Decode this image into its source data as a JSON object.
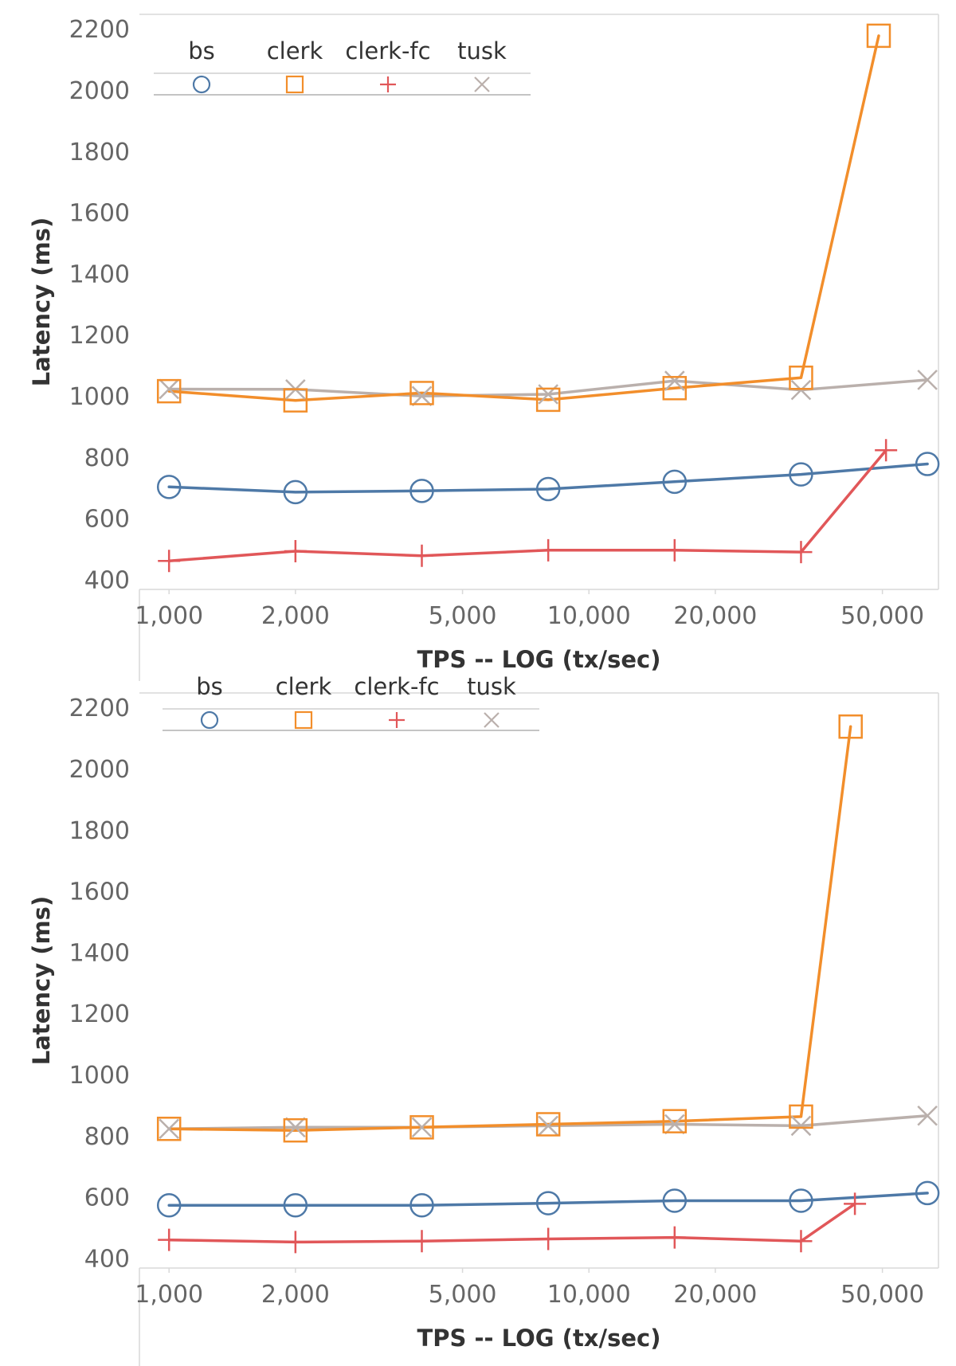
{
  "chart_data": [
    {
      "type": "line",
      "title": "",
      "xlabel": "TPS -- LOG (tx/sec)",
      "ylabel": "Latency (ms)",
      "x_scale": "log",
      "xlim": [
        850,
        68000
      ],
      "ylim": [
        370,
        2250
      ],
      "x_ticks": [
        1000,
        2000,
        5000,
        10000,
        20000,
        50000
      ],
      "x_tick_labels": [
        "1,000",
        "2,000",
        "5,000",
        "10,000",
        "20,000",
        "50,000"
      ],
      "y_ticks": [
        400,
        600,
        800,
        1000,
        1200,
        1400,
        1600,
        1800,
        2000,
        2200
      ],
      "y_tick_labels": [
        "400",
        "600",
        "800",
        "1000",
        "1200",
        "1400",
        "1600",
        "1800",
        "2000",
        "2200"
      ],
      "legend": {
        "placement": "top-left",
        "entries": [
          "bs",
          "clerk",
          "clerk-fc",
          "tusk"
        ]
      },
      "series": [
        {
          "name": "bs",
          "marker": "circle",
          "color": "#4e79a7",
          "x": [
            1000,
            2000,
            4000,
            8000,
            16000,
            32000,
            64000
          ],
          "y": [
            705,
            688,
            692,
            698,
            722,
            746,
            780
          ]
        },
        {
          "name": "clerk",
          "marker": "square",
          "color": "#f28e2b",
          "x": [
            1000,
            2000,
            4000,
            8000,
            16000,
            32000,
            49000
          ],
          "y": [
            1018,
            988,
            1012,
            990,
            1028,
            1062,
            2180
          ]
        },
        {
          "name": "clerk-fc",
          "marker": "plus",
          "color": "#e15759",
          "x": [
            1000,
            2000,
            4000,
            8000,
            16000,
            32000,
            51000
          ],
          "y": [
            463,
            495,
            480,
            498,
            498,
            492,
            825
          ]
        },
        {
          "name": "tusk",
          "marker": "x",
          "color": "#bab0ac",
          "x": [
            1000,
            2000,
            4000,
            8000,
            16000,
            32000,
            64000
          ],
          "y": [
            1025,
            1024,
            1002,
            1008,
            1052,
            1022,
            1055
          ]
        }
      ]
    },
    {
      "type": "line",
      "title": "",
      "xlabel": "TPS -- LOG (tx/sec)",
      "ylabel": "Latency (ms)",
      "x_scale": "log",
      "xlim": [
        850,
        68000
      ],
      "ylim": [
        370,
        2250
      ],
      "x_ticks": [
        1000,
        2000,
        5000,
        10000,
        20000,
        50000
      ],
      "x_tick_labels": [
        "1,000",
        "2,000",
        "5,000",
        "10,000",
        "20,000",
        "50,000"
      ],
      "y_ticks": [
        400,
        600,
        800,
        1000,
        1200,
        1400,
        1600,
        1800,
        2000,
        2200
      ],
      "y_tick_labels": [
        "400",
        "600",
        "800",
        "1000",
        "1200",
        "1400",
        "1600",
        "1800",
        "2000",
        "2200"
      ],
      "legend": {
        "placement": "top-left",
        "entries": [
          "bs",
          "clerk",
          "clerk-fc",
          "tusk"
        ]
      },
      "series": [
        {
          "name": "bs",
          "marker": "circle",
          "color": "#4e79a7",
          "x": [
            1000,
            2000,
            4000,
            8000,
            16000,
            32000,
            64000
          ],
          "y": [
            575,
            575,
            575,
            582,
            590,
            590,
            615
          ]
        },
        {
          "name": "clerk",
          "marker": "square",
          "color": "#f28e2b",
          "x": [
            1000,
            2000,
            4000,
            8000,
            16000,
            32000,
            42000
          ],
          "y": [
            825,
            820,
            830,
            840,
            850,
            865,
            2140
          ]
        },
        {
          "name": "clerk-fc",
          "marker": "plus",
          "color": "#e15759",
          "x": [
            1000,
            2000,
            4000,
            8000,
            16000,
            32000,
            43000
          ],
          "y": [
            462,
            455,
            458,
            465,
            470,
            458,
            580
          ]
        },
        {
          "name": "tusk",
          "marker": "x",
          "color": "#bab0ac",
          "x": [
            1000,
            2000,
            4000,
            8000,
            16000,
            32000,
            64000
          ],
          "y": [
            825,
            830,
            830,
            835,
            840,
            835,
            868
          ]
        }
      ]
    }
  ]
}
